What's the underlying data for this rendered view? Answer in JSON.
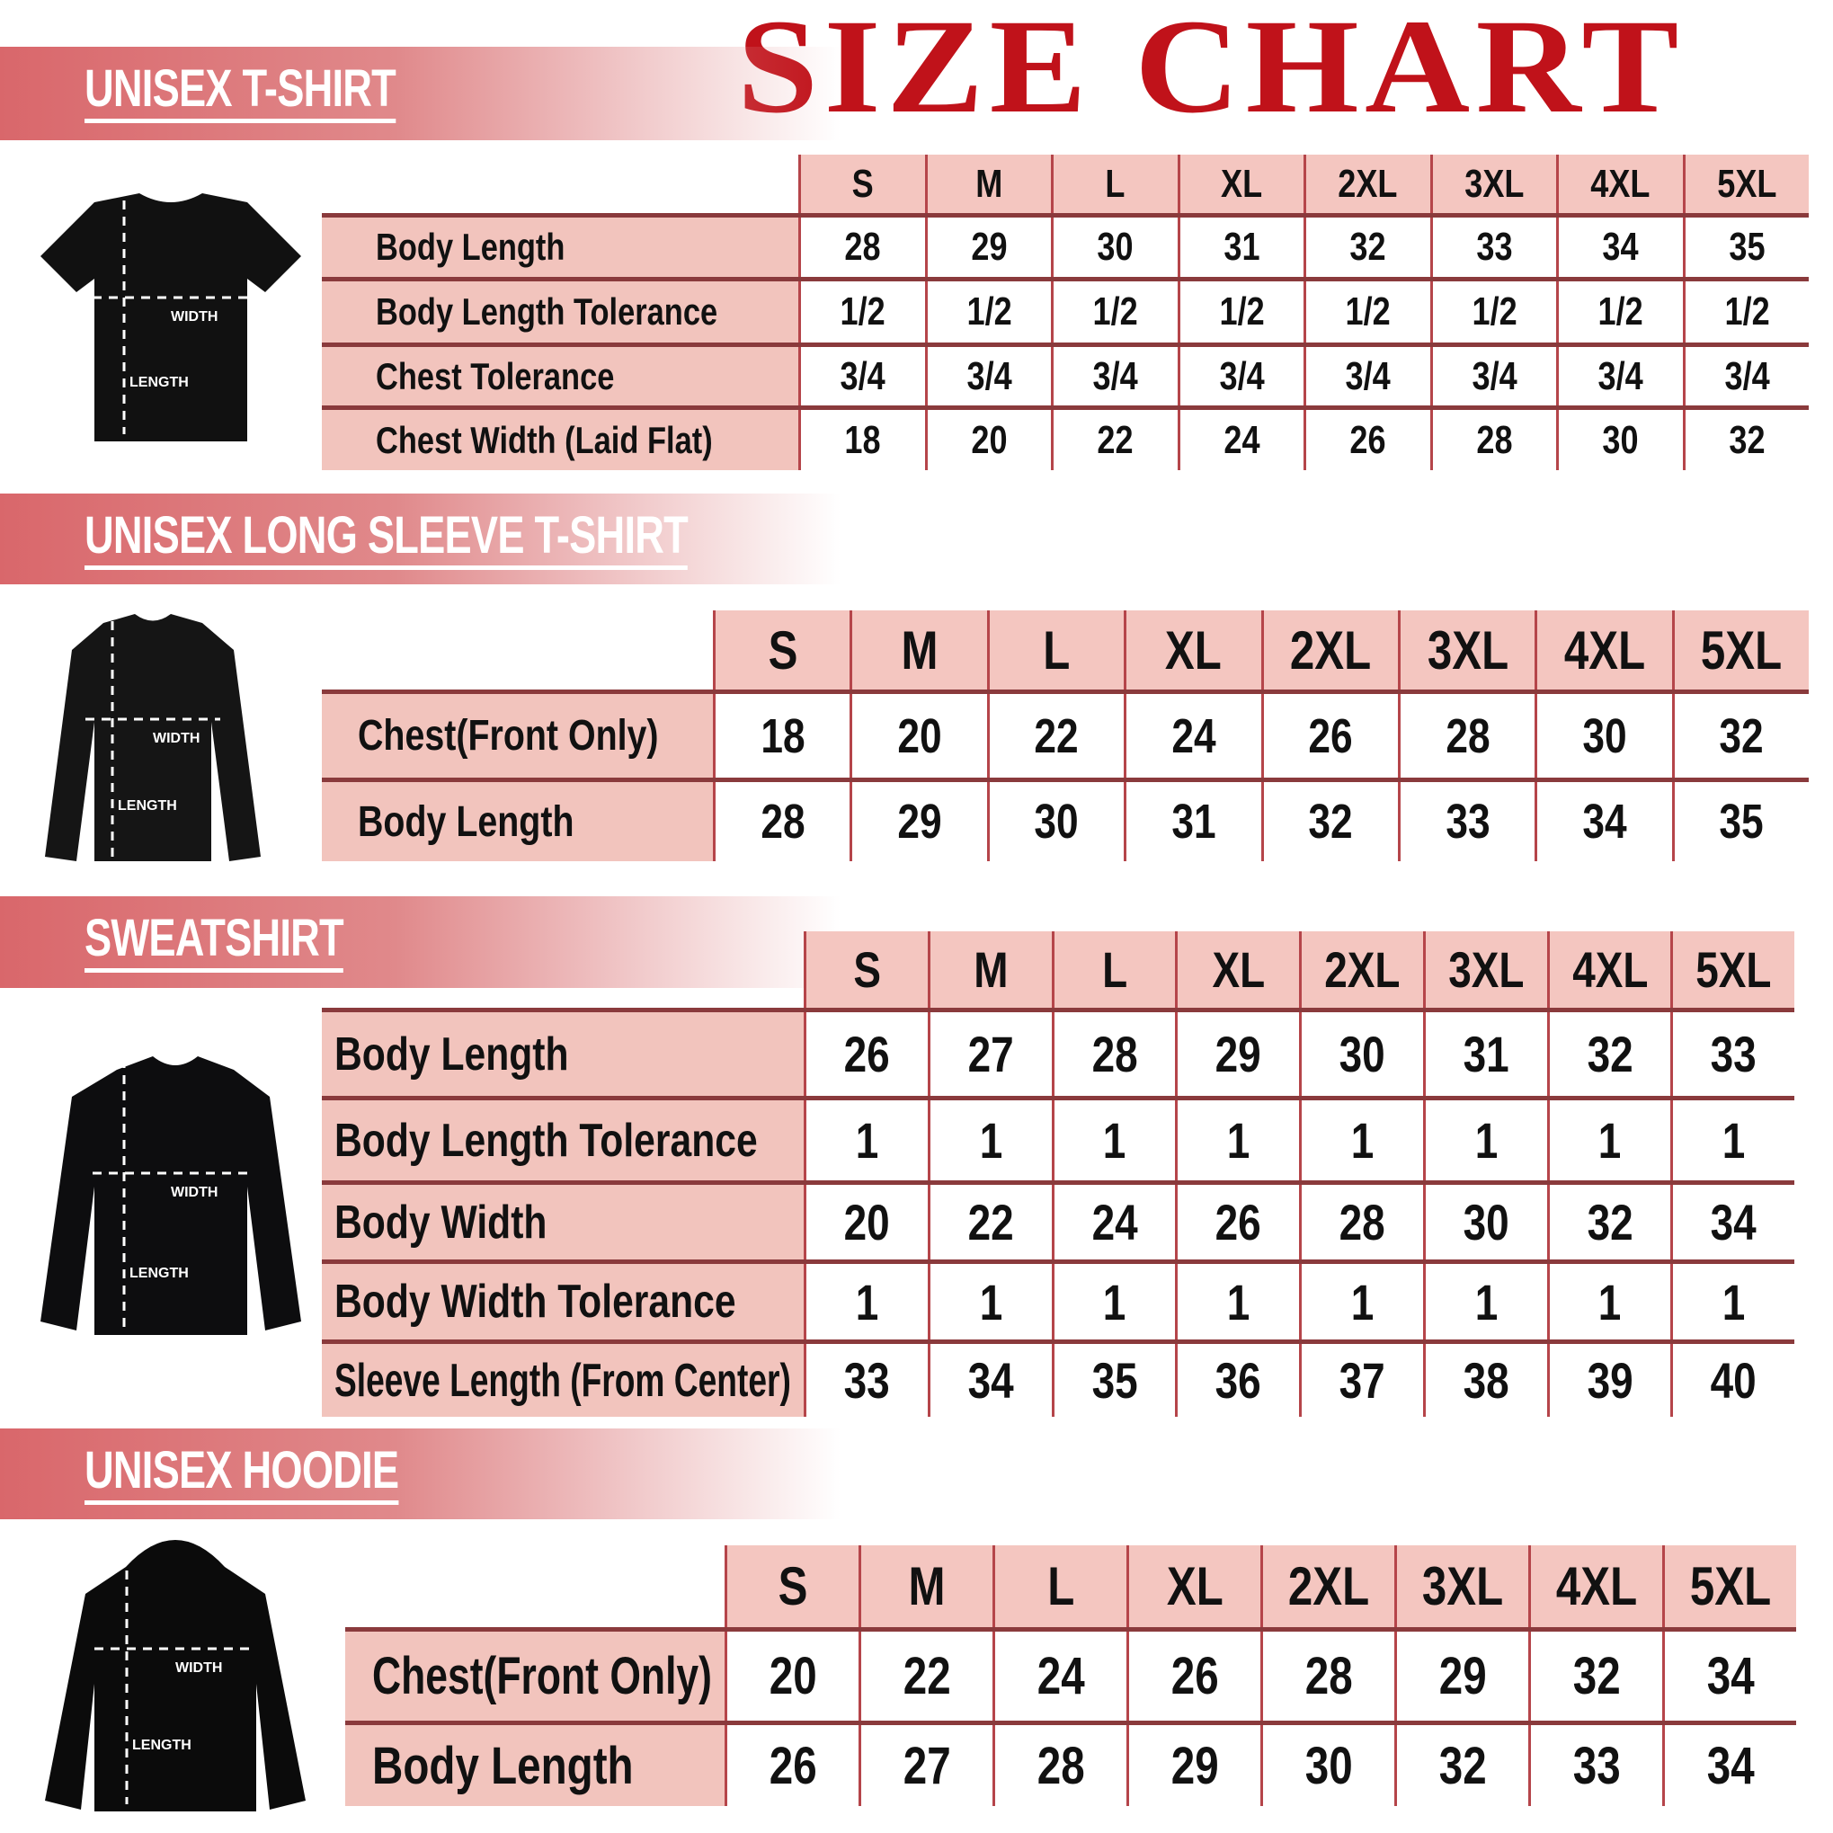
{
  "title": "SIZE CHART",
  "colors": {
    "title": "#c0121a",
    "banner": "#d9676b",
    "header_fill": "#f4c6c0",
    "border": "#b5454a"
  },
  "sizes": [
    "S",
    "M",
    "L",
    "XL",
    "2XL",
    "3XL",
    "4XL",
    "5XL"
  ],
  "sections": [
    {
      "heading": "UNISEX T-SHIRT",
      "image_labels": {
        "width": "WIDTH",
        "length": "LENGTH"
      },
      "rows": [
        {
          "label": "Body Length",
          "values": [
            "28",
            "29",
            "30",
            "31",
            "32",
            "33",
            "34",
            "35"
          ]
        },
        {
          "label": "Body Length Tolerance",
          "values": [
            "1/2",
            "1/2",
            "1/2",
            "1/2",
            "1/2",
            "1/2",
            "1/2",
            "1/2"
          ]
        },
        {
          "label": "Chest Tolerance",
          "values": [
            "3/4",
            "3/4",
            "3/4",
            "3/4",
            "3/4",
            "3/4",
            "3/4",
            "3/4"
          ]
        },
        {
          "label": "Chest Width (Laid Flat)",
          "values": [
            "18",
            "20",
            "22",
            "24",
            "26",
            "28",
            "30",
            "32"
          ]
        }
      ]
    },
    {
      "heading": "UNISEX LONG SLEEVE T-SHIRT",
      "image_labels": {
        "width": "WIDTH",
        "length": "LENGTH"
      },
      "rows": [
        {
          "label": "Chest(Front Only)",
          "values": [
            "18",
            "20",
            "22",
            "24",
            "26",
            "28",
            "30",
            "32"
          ]
        },
        {
          "label": "Body Length",
          "values": [
            "28",
            "29",
            "30",
            "31",
            "32",
            "33",
            "34",
            "35"
          ]
        }
      ]
    },
    {
      "heading": "SWEATSHIRT",
      "image_labels": {
        "width": "WIDTH",
        "length": "LENGTH"
      },
      "rows": [
        {
          "label": "Body Length",
          "values": [
            "26",
            "27",
            "28",
            "29",
            "30",
            "31",
            "32",
            "33"
          ]
        },
        {
          "label": "Body Length Tolerance",
          "values": [
            "1",
            "1",
            "1",
            "1",
            "1",
            "1",
            "1",
            "1"
          ]
        },
        {
          "label": "Body Width",
          "values": [
            "20",
            "22",
            "24",
            "26",
            "28",
            "30",
            "32",
            "34"
          ]
        },
        {
          "label": "Body Width Tolerance",
          "values": [
            "1",
            "1",
            "1",
            "1",
            "1",
            "1",
            "1",
            "1"
          ]
        },
        {
          "label": "Sleeve Length (From Center)",
          "values": [
            "33",
            "34",
            "35",
            "36",
            "37",
            "38",
            "39",
            "40"
          ]
        }
      ]
    },
    {
      "heading": "UNISEX HOODIE",
      "image_labels": {
        "width": "WIDTH",
        "length": "LENGTH"
      },
      "rows": [
        {
          "label": "Chest(Front Only)",
          "values": [
            "20",
            "22",
            "24",
            "26",
            "28",
            "29",
            "32",
            "34"
          ]
        },
        {
          "label": "Body Length",
          "values": [
            "26",
            "27",
            "28",
            "29",
            "30",
            "32",
            "33",
            "34"
          ]
        }
      ]
    }
  ]
}
